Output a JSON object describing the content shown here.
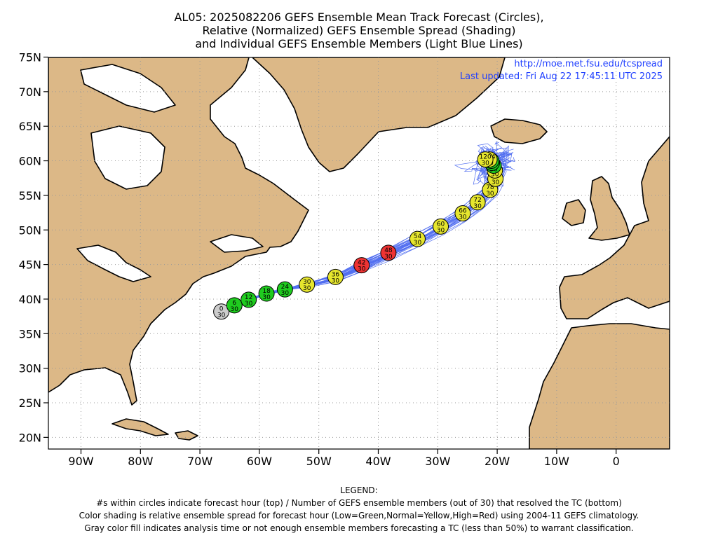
{
  "title": {
    "line1": "AL05: 2025082206 GEFS Ensemble Mean Track Forecast (Circles),",
    "line2": "Relative (Normalized) GEFS Ensemble Spread (Shading)",
    "line3": "and Individual GEFS Ensemble Members (Light Blue Lines)"
  },
  "info": {
    "url": "http://moe.met.fsu.edu/tcspread",
    "updated": "Last updated: Fri Aug 22 17:45:11 UTC 2025"
  },
  "axes": {
    "x_ticks": [
      {
        "lon": -90,
        "label": "90W"
      },
      {
        "lon": -80,
        "label": "80W"
      },
      {
        "lon": -70,
        "label": "70W"
      },
      {
        "lon": -60,
        "label": "60W"
      },
      {
        "lon": -50,
        "label": "50W"
      },
      {
        "lon": -40,
        "label": "40W"
      },
      {
        "lon": -30,
        "label": "30W"
      },
      {
        "lon": -20,
        "label": "20W"
      },
      {
        "lon": -10,
        "label": "10W"
      },
      {
        "lon": 0,
        "label": "0"
      }
    ],
    "y_ticks": [
      {
        "lat": 75,
        "label": "75N"
      },
      {
        "lat": 70,
        "label": "70N"
      },
      {
        "lat": 65,
        "label": "65N"
      },
      {
        "lat": 60,
        "label": "60N"
      },
      {
        "lat": 55,
        "label": "55N"
      },
      {
        "lat": 50,
        "label": "50N"
      },
      {
        "lat": 45,
        "label": "45N"
      },
      {
        "lat": 40,
        "label": "40N"
      },
      {
        "lat": 35,
        "label": "35N"
      },
      {
        "lat": 30,
        "label": "30N"
      },
      {
        "lat": 25,
        "label": "25N"
      },
      {
        "lat": 20,
        "label": "20N"
      }
    ],
    "lon_range": [
      -95,
      9
    ],
    "lat_range": [
      18.5,
      75
    ],
    "grid": true
  },
  "colors": {
    "land": "#dcb887",
    "ocean": "#ffffff",
    "member_tracks": "#3355ee",
    "low_spread": "#1fcc1f",
    "normal_spread": "#e6e62e",
    "high_spread": "#ee3333",
    "analysis": "#cccccc"
  },
  "track_points": [
    {
      "hour": "0",
      "members": "30",
      "lon": -66.4,
      "lat": 38.2,
      "spread": "analysis"
    },
    {
      "hour": "6",
      "members": "30",
      "lon": -64.2,
      "lat": 39.1,
      "spread": "low"
    },
    {
      "hour": "12",
      "members": "30",
      "lon": -61.8,
      "lat": 39.9,
      "spread": "low"
    },
    {
      "hour": "18",
      "members": "30",
      "lon": -58.8,
      "lat": 40.8,
      "spread": "low"
    },
    {
      "hour": "24",
      "members": "30",
      "lon": -55.7,
      "lat": 41.4,
      "spread": "low"
    },
    {
      "hour": "30",
      "members": "30",
      "lon": -52.0,
      "lat": 42.1,
      "spread": "normal"
    },
    {
      "hour": "36",
      "members": "30",
      "lon": -47.2,
      "lat": 43.2,
      "spread": "normal"
    },
    {
      "hour": "42",
      "members": "30",
      "lon": -42.8,
      "lat": 44.9,
      "spread": "high"
    },
    {
      "hour": "48",
      "members": "30",
      "lon": -38.3,
      "lat": 46.7,
      "spread": "high"
    },
    {
      "hour": "54",
      "members": "30",
      "lon": -33.4,
      "lat": 48.7,
      "spread": "normal"
    },
    {
      "hour": "60",
      "members": "30",
      "lon": -29.5,
      "lat": 50.5,
      "spread": "normal"
    },
    {
      "hour": "66",
      "members": "30",
      "lon": -25.8,
      "lat": 52.4,
      "spread": "normal"
    },
    {
      "hour": "72",
      "members": "30",
      "lon": -23.3,
      "lat": 54.0,
      "spread": "normal"
    },
    {
      "hour": "78",
      "members": "30",
      "lon": -21.2,
      "lat": 55.8,
      "spread": "normal"
    },
    {
      "hour": "84",
      "members": "30",
      "lon": -20.3,
      "lat": 57.4,
      "spread": "normal"
    },
    {
      "hour": "90",
      "members": "30",
      "lon": -20.4,
      "lat": 58.6,
      "spread": "normal"
    },
    {
      "hour": "96",
      "members": "30",
      "lon": -20.6,
      "lat": 59.3,
      "spread": "low"
    },
    {
      "hour": "102",
      "members": "30",
      "lon": -20.9,
      "lat": 59.7,
      "spread": "low"
    },
    {
      "hour": "108",
      "members": "30",
      "lon": -21.0,
      "lat": 60.0,
      "spread": "low"
    },
    {
      "hour": "114",
      "members": "30",
      "lon": -21.3,
      "lat": 60.2,
      "spread": "normal"
    },
    {
      "hour": "120",
      "members": "30",
      "lon": -22.0,
      "lat": 60.2,
      "spread": "normal"
    }
  ],
  "legend": {
    "heading": "LEGEND:",
    "line1": "#s within circles indicate forecast hour (top) / Number of GEFS ensemble members (out of 30) that resolved the TC (bottom)",
    "line2": "Color shading is relative ensemble spread for forecast hour (Low=Green,Normal=Yellow,High=Red) using 2004-11 GEFS climatology.",
    "line3": "Gray color fill indicates analysis time or not enough ensemble members forecasting a TC (less than 50%) to warrant classification."
  }
}
